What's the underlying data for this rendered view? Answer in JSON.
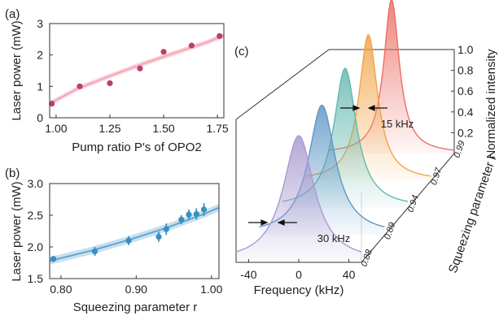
{
  "chart_data": [
    {
      "panel": "(a)",
      "type": "scatter",
      "xlabel": "Pump ratio P′s of OPO2",
      "ylabel": "Laser power (mW)",
      "xlim": [
        0.97,
        1.78
      ],
      "ylim": [
        0,
        3
      ],
      "xticks": [
        1.0,
        1.25,
        1.5,
        1.75
      ],
      "xtick_labels": [
        "1.00",
        "1.25",
        "1.50",
        "1.75"
      ],
      "yticks": [
        0,
        1,
        2,
        3
      ],
      "ytick_labels": [
        "0",
        "1",
        "2",
        "3"
      ],
      "x": [
        0.98,
        1.11,
        1.25,
        1.39,
        1.5,
        1.63,
        1.76
      ],
      "y": [
        0.45,
        1.0,
        1.1,
        1.57,
        2.1,
        2.3,
        2.6
      ],
      "fit": {
        "x": [
          0.97,
          1.1,
          1.25,
          1.4,
          1.55,
          1.7,
          1.78
        ],
        "y": [
          0.45,
          0.93,
          1.33,
          1.71,
          2.06,
          2.4,
          2.62
        ],
        "band": 0.08
      },
      "colors": {
        "points": "#b9406d",
        "fit": "#f4a4b2",
        "band": "#f9cdd6"
      }
    },
    {
      "panel": "(b)",
      "type": "scatter",
      "xlabel": "Squeezing parameter r",
      "ylabel": "Laser power (mW)",
      "xlim": [
        0.785,
        1.01
      ],
      "ylim": [
        1.5,
        3.0
      ],
      "xticks": [
        0.8,
        0.9,
        1.0
      ],
      "xtick_labels": [
        "0.80",
        "0.90",
        "1.00"
      ],
      "yticks": [
        1.5,
        2.0,
        2.5,
        3.0
      ],
      "ytick_labels": [
        "1.5",
        "2.0",
        "2.5",
        "3.0"
      ],
      "x": [
        0.79,
        0.845,
        0.89,
        0.93,
        0.94,
        0.96,
        0.97,
        0.98,
        0.99
      ],
      "y": [
        1.81,
        1.93,
        2.1,
        2.16,
        2.28,
        2.43,
        2.51,
        2.52,
        2.59
      ],
      "yerr": [
        0.05,
        0.07,
        0.07,
        0.08,
        0.09,
        0.07,
        0.08,
        0.09,
        0.1
      ],
      "fit": {
        "x": [
          0.785,
          0.84,
          0.89,
          0.94,
          0.99,
          1.01
        ],
        "y": [
          1.78,
          1.94,
          2.11,
          2.3,
          2.52,
          2.62
        ],
        "band": 0.06
      },
      "colors": {
        "points": "#3a8fc0",
        "fit": "#63a4cf",
        "band": "#b9d8ec"
      }
    },
    {
      "panel": "(c)",
      "type": "line",
      "xlabel": "Frequency (kHz)",
      "ylabel": "Squeezing parameter r",
      "zlabel": "Normalized intensity",
      "xticks": [
        -40,
        0,
        40
      ],
      "xtick_labels": [
        "-40",
        "0",
        "40"
      ],
      "zticks": [
        0.2,
        0.4,
        0.6,
        0.8,
        1.0
      ],
      "ztick_labels": [
        "0.2",
        "0.4",
        "0.6",
        "0.8",
        "1.0"
      ],
      "series": [
        {
          "r": 0.88,
          "r_label": "0.88",
          "linewidth_khz": 30,
          "color": "#a99ad0"
        },
        {
          "r": 0.89,
          "r_label": "0.89",
          "linewidth_khz": 26,
          "color": "#5f97c6"
        },
        {
          "r": 0.94,
          "r_label": "0.94",
          "linewidth_khz": 22,
          "color": "#63b8ad"
        },
        {
          "r": 0.97,
          "r_label": "0.97",
          "linewidth_khz": 18,
          "color": "#f2a447"
        },
        {
          "r": 0.99,
          "r_label": "0.99",
          "linewidth_khz": 15,
          "color": "#ec6f64"
        }
      ],
      "annotations": [
        {
          "text": "30 kHz"
        },
        {
          "text": "15 kHz"
        }
      ]
    }
  ]
}
